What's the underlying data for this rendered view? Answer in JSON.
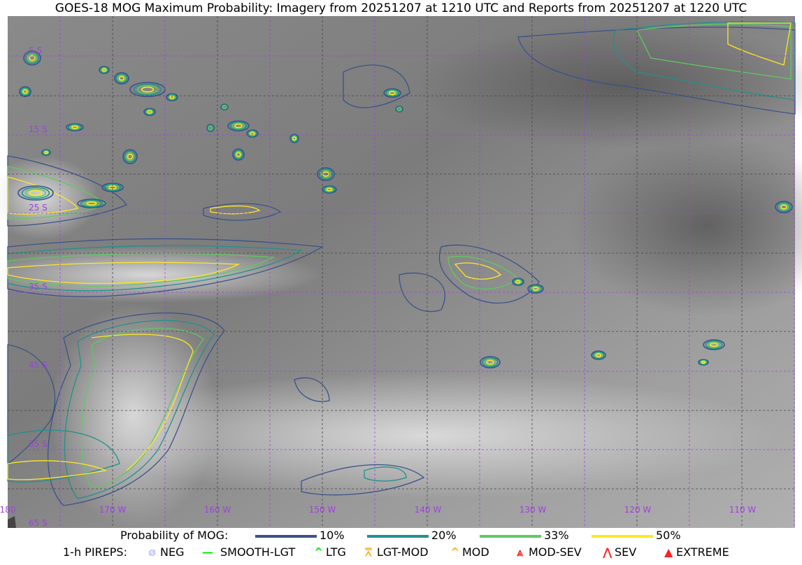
{
  "title": "GOES-18 MOG Maximum Probability: Imagery from 20251207 at 1210 UTC and Reports from 20251207 at 1220 UTC",
  "map": {
    "lat_labels": [
      "5 S",
      "15 S",
      "25 S",
      "35 S",
      "45 S",
      "55 S",
      "65 S"
    ],
    "lon_labels": [
      "180",
      "170 W",
      "160 W",
      "150 W",
      "140 W",
      "130 W",
      "120 W",
      "110 W"
    ],
    "contour_colors": {
      "10%": "#3b528b",
      "20%": "#21918c",
      "33%": "#5ec962",
      "50%": "#fde725"
    },
    "grid_color": "#a040e0"
  },
  "legend": {
    "probability_label": "Probability of MOG:",
    "levels": [
      {
        "label": "10%",
        "color": "#3b528b"
      },
      {
        "label": "20%",
        "color": "#21918c"
      },
      {
        "label": "33%",
        "color": "#5ec962"
      },
      {
        "label": "50%",
        "color": "#fde725"
      }
    ],
    "pireps_label": "1-h PIREPS:",
    "pireps": [
      {
        "label": "NEG",
        "icon": "neg-circle-slash",
        "color": "#c8c8ff"
      },
      {
        "label": "SMOOTH-LGT",
        "icon": "line",
        "color": "#00ee00"
      },
      {
        "label": "LTG",
        "icon": "caret",
        "color": "#00ee00"
      },
      {
        "label": "LGT-MOD",
        "icon": "caret-bar",
        "color": "#ffb020"
      },
      {
        "label": "MOD",
        "icon": "caret",
        "color": "#ffb020"
      },
      {
        "label": "MOD-SEV",
        "icon": "double-caret-bar",
        "color": "#ff3030"
      },
      {
        "label": "SEV",
        "icon": "double-caret",
        "color": "#ff3030"
      },
      {
        "label": "EXTREME",
        "icon": "filled-triangle",
        "color": "#ff2020"
      }
    ]
  }
}
